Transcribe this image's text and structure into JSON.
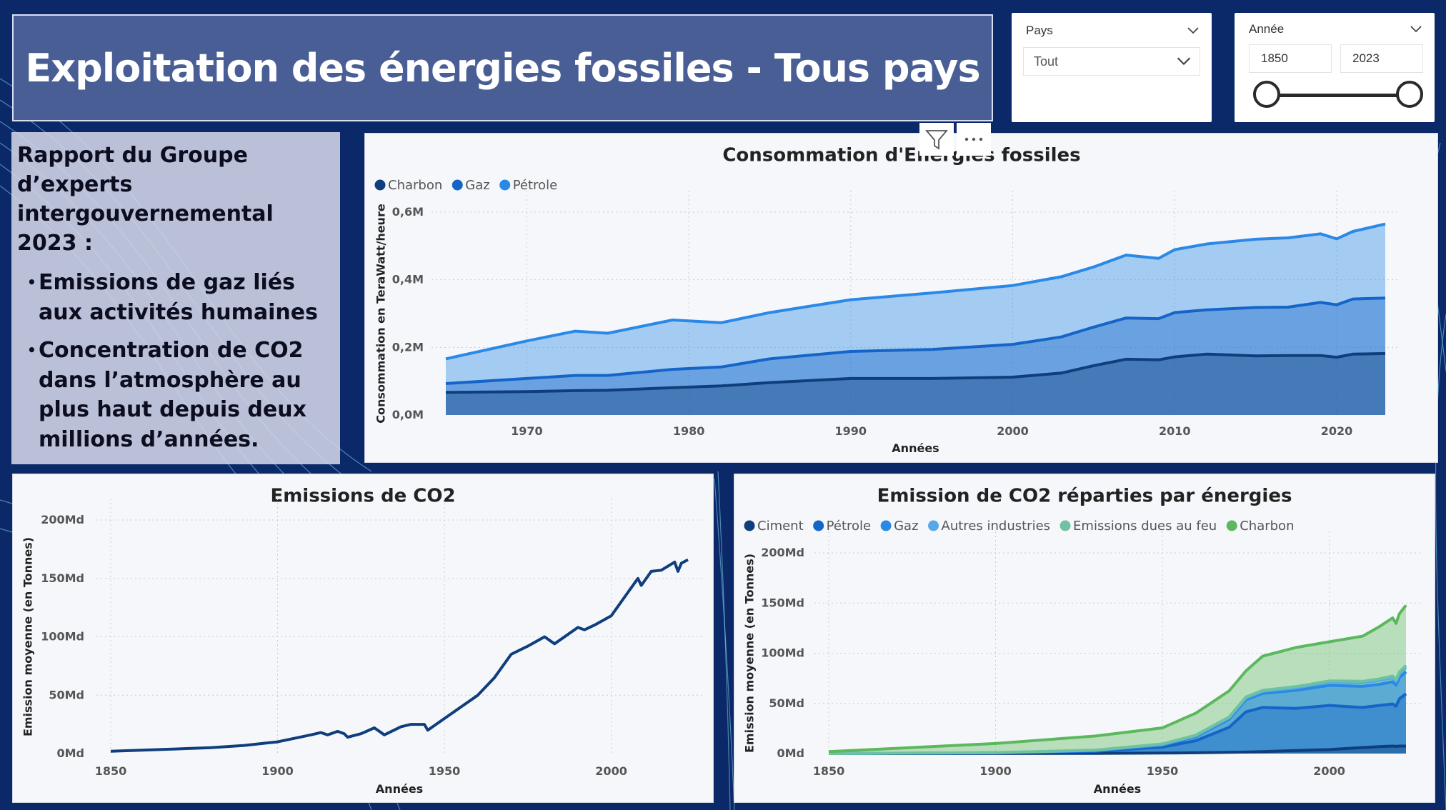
{
  "title": "Exploitation des énergies fossiles - Tous pays",
  "filters": {
    "pays": {
      "label": "Pays",
      "value": "Tout"
    },
    "annee": {
      "label": "Année",
      "from": "1850",
      "to": "2023",
      "range": [
        1850,
        2023
      ]
    }
  },
  "info": {
    "heading": "Rapport du Groupe d’experts intergouvernemental 2023 :",
    "bullets": [
      "Emissions de gaz liés aux activités humaines",
      "Concentration de CO2 dans l’atmosphère au plus haut depuis deux millions d’années."
    ]
  },
  "colors": {
    "background": "#0b2868",
    "charbon": "#0f3e7c",
    "gaz": "#1565c8",
    "petrole": "#2a89e6",
    "ciment": "#0f3e7c",
    "autres": "#56a9e8",
    "feu": "#6fc2a0",
    "charbon_co2": "#5cb85c"
  },
  "chart_data": [
    {
      "id": "consommation",
      "type": "area",
      "title": "Consommation d'Energies fossiles",
      "xlabel": "Années",
      "ylabel": "Consommation en TeraWatt/heure",
      "stacked": true,
      "xlim": [
        1965,
        2023
      ],
      "ylim": [
        0,
        600000
      ],
      "yticks": [
        "0,0M",
        "0,2M",
        "0,4M",
        "0,6M"
      ],
      "xticks": [
        1970,
        1980,
        1990,
        2000,
        2010,
        2020
      ],
      "legend_position": "top-left",
      "grid": true,
      "x": [
        1965,
        1970,
        1973,
        1975,
        1979,
        1982,
        1985,
        1990,
        1995,
        2000,
        2003,
        2005,
        2007,
        2009,
        2010,
        2012,
        2015,
        2017,
        2019,
        2020,
        2021,
        2023
      ],
      "series": [
        {
          "name": "Charbon",
          "color": "#0f3e7c",
          "values": [
            67000,
            69000,
            72000,
            73000,
            81000,
            86000,
            96000,
            108000,
            108000,
            112000,
            124000,
            146000,
            165000,
            163000,
            172000,
            180000,
            175000,
            176000,
            176000,
            171000,
            180000,
            182000
          ]
        },
        {
          "name": "Gaz",
          "color": "#1565c8",
          "values": [
            26000,
            39000,
            45000,
            44000,
            54000,
            56000,
            70000,
            80000,
            86000,
            97000,
            107000,
            114000,
            122000,
            122000,
            131000,
            131000,
            143000,
            143000,
            157000,
            155000,
            163000,
            164000
          ]
        },
        {
          "name": "Pétrole",
          "color": "#2a89e6",
          "values": [
            73000,
            111000,
            131000,
            125000,
            146000,
            131000,
            137000,
            153000,
            167000,
            174000,
            178000,
            178000,
            186000,
            178000,
            186000,
            195000,
            202000,
            205000,
            203000,
            195000,
            200000,
            219000
          ]
        }
      ]
    },
    {
      "id": "emissions-co2",
      "type": "line",
      "title": "Emissions de CO2",
      "xlabel": "Années",
      "ylabel": "Emission moyenne (en Tonnes)",
      "xlim": [
        1850,
        2023
      ],
      "ylim": [
        0,
        200
      ],
      "yticks": [
        "0Md",
        "50Md",
        "100Md",
        "150Md",
        "200Md"
      ],
      "xticks": [
        1850,
        1900,
        1950,
        2000
      ],
      "grid": true,
      "x": [
        1850,
        1860,
        1870,
        1880,
        1890,
        1900,
        1905,
        1910,
        1913,
        1915,
        1918,
        1920,
        1921,
        1925,
        1929,
        1932,
        1937,
        1940,
        1944,
        1945,
        1950,
        1955,
        1960,
        1965,
        1970,
        1975,
        1980,
        1983,
        1990,
        1992,
        1995,
        2000,
        2005,
        2008,
        2009,
        2012,
        2015,
        2019,
        2020,
        2021,
        2023
      ],
      "series": [
        {
          "name": "",
          "color": "#0f3e7c",
          "values": [
            2,
            3,
            4,
            5,
            7,
            10,
            13,
            16,
            18,
            16,
            19,
            17,
            14,
            17,
            22,
            16,
            23,
            25,
            25,
            20,
            30,
            40,
            50,
            65,
            85,
            92,
            100,
            94,
            108,
            106,
            110,
            118,
            138,
            150,
            144,
            156,
            157,
            164,
            156,
            163,
            166
          ]
        }
      ]
    },
    {
      "id": "emissions-par-energie",
      "type": "area",
      "title": "Emission de CO2 réparties par énergies",
      "xlabel": "Années",
      "ylabel": "Emission moyenne (en Tonnes)",
      "stacked": true,
      "xlim": [
        1850,
        2023
      ],
      "ylim": [
        0,
        200
      ],
      "yticks": [
        "0Md",
        "50Md",
        "100Md",
        "150Md",
        "200Md"
      ],
      "xticks": [
        1850,
        1900,
        1950,
        2000
      ],
      "legend_position": "top-left",
      "grid": true,
      "x": [
        1850,
        1900,
        1930,
        1950,
        1960,
        1970,
        1975,
        1980,
        1990,
        2000,
        2010,
        2015,
        2019,
        2020,
        2021,
        2023
      ],
      "series": [
        {
          "name": "Ciment",
          "color": "#0f3e7c",
          "values": [
            0,
            0.1,
            0.2,
            0.5,
            0.8,
            1.2,
            1.5,
            2,
            3,
            4,
            6,
            7,
            7.5,
            7.2,
            7.5,
            7.5
          ]
        },
        {
          "name": "Pétrole",
          "color": "#1565c8",
          "values": [
            0,
            0.5,
            2,
            6,
            12,
            25,
            40,
            44,
            42,
            44,
            40,
            41,
            42,
            40,
            47,
            52
          ]
        },
        {
          "name": "Gaz",
          "color": "#2a89e6",
          "values": [
            0,
            0.2,
            0.8,
            2,
            4,
            8,
            12,
            14,
            18,
            20,
            21,
            21,
            22,
            21,
            21,
            22
          ]
        },
        {
          "name": "Autres industries",
          "color": "#56a9e8",
          "values": [
            0,
            0.1,
            0.3,
            0.7,
            1,
            1.5,
            1.8,
            2,
            2.5,
            3,
            3.5,
            3.8,
            4,
            3.8,
            4,
            4.5
          ]
        },
        {
          "name": "Emissions dues au feu",
          "color": "#6fc2a0",
          "values": [
            0,
            0.1,
            0.2,
            0.4,
            0.5,
            0.8,
            1,
            1,
            1.2,
            1.4,
            1.5,
            1.6,
            1.7,
            1.7,
            1.7,
            1.8
          ]
        },
        {
          "name": "Charbon",
          "color": "#5cb85c",
          "values": [
            2,
            9,
            14,
            16,
            22,
            26,
            26,
            34,
            39,
            39,
            45,
            52,
            58,
            56,
            58,
            60
          ]
        }
      ]
    }
  ]
}
